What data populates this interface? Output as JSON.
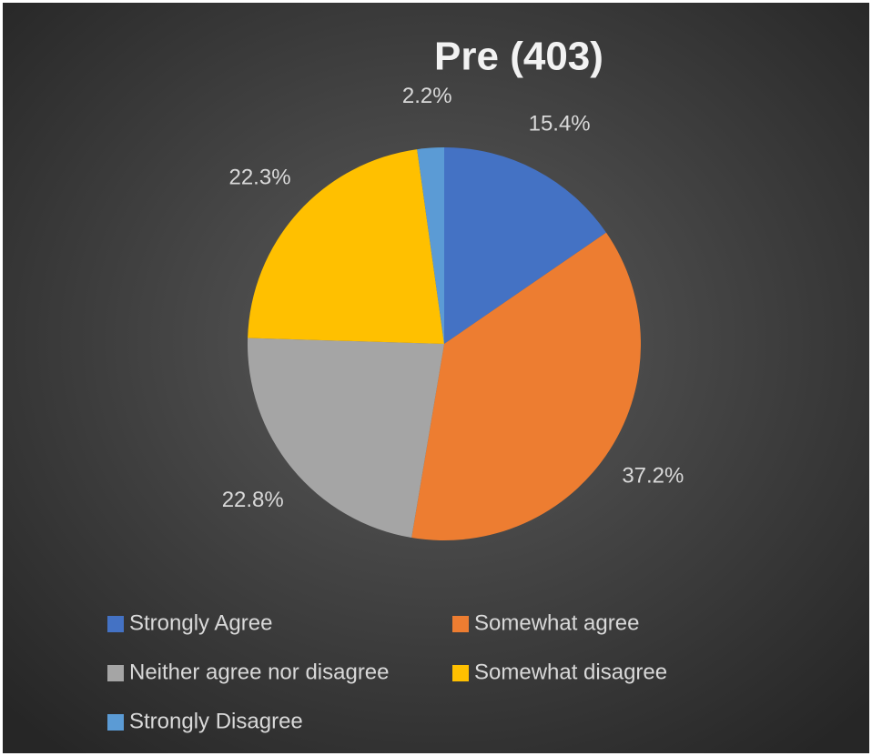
{
  "chart_data": {
    "type": "pie",
    "title": "Pre (403)",
    "categories": [
      "Strongly Agree",
      "Somewhat agree",
      "Neither agree nor disagree",
      "Somewhat disagree",
      "Strongly Disagree"
    ],
    "values": [
      15.4,
      37.2,
      22.8,
      22.3,
      2.2
    ],
    "value_labels": [
      "15.4%",
      "37.2%",
      "22.8%",
      "22.3%",
      "2.2%"
    ],
    "colors": [
      "#4472c4",
      "#ed7d31",
      "#a5a5a5",
      "#ffc000",
      "#5b9bd5"
    ],
    "legend": "bottom"
  }
}
